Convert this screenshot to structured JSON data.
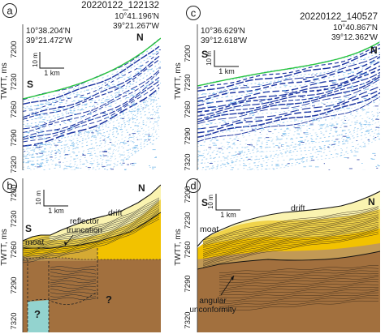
{
  "panels": [
    {
      "id": "a",
      "line_id": "20220122_122132",
      "start_coord": [
        "10°38.204'N",
        "39°21.472'W"
      ],
      "end_coord": [
        "10°41.196'N",
        "39°21.267'W"
      ],
      "side_left": "S",
      "side_right": "N",
      "vertical_scale": "10 m",
      "horizontal_scale": "1 km",
      "axis_label": "TWTT, ms",
      "ticks": [
        "7200",
        "7230",
        "7260",
        "7290",
        "7320"
      ]
    },
    {
      "id": "b",
      "side_left": "S",
      "side_right": "N",
      "vertical_scale": "10 m",
      "horizontal_scale": "1 km",
      "axis_label": "TWTT, ms",
      "ticks": [
        "7200",
        "7230",
        "7260",
        "7290",
        "7320"
      ],
      "annotations": {
        "reflector_truncation": [
          "reflector",
          "truncation"
        ],
        "drift": "drift",
        "moat": "moat",
        "q1": "?",
        "q2": "?"
      }
    },
    {
      "id": "c",
      "line_id": "20220122_140527",
      "start_coord": [
        "10°36.629'N",
        "39°12.618'W"
      ],
      "end_coord": [
        "10°40.867'N",
        "39°12.362'W"
      ],
      "side_left": "S",
      "side_right": "N",
      "vertical_scale": "10 m",
      "horizontal_scale": "1 km",
      "axis_label": "TWTT, ms",
      "ticks": [
        "7200",
        "7230",
        "7260",
        "7290",
        "7320"
      ]
    },
    {
      "id": "d",
      "side_left": "S",
      "side_right": "N",
      "vertical_scale": "10 m",
      "horizontal_scale": "1 km",
      "axis_label": "TWTT, ms",
      "ticks": [
        "7200",
        "7230",
        "7260",
        "7290",
        "7320"
      ],
      "annotations": {
        "drift": "drift",
        "moat": "moat",
        "angular_unconformity": [
          "angular",
          "unconformity"
        ]
      }
    }
  ],
  "colors": {
    "seafloor_reflector": "#27c43f",
    "strong_reflector": "#102a9c",
    "weak_reflector": "#6fb6ea",
    "drift_upper": "#faf3b0",
    "drift_middle": "#f0d34a",
    "drift_lower": "#f2c200",
    "transition": "#c29a55",
    "older_unit": "#a2703e",
    "basement_question": "#93d3cf"
  }
}
